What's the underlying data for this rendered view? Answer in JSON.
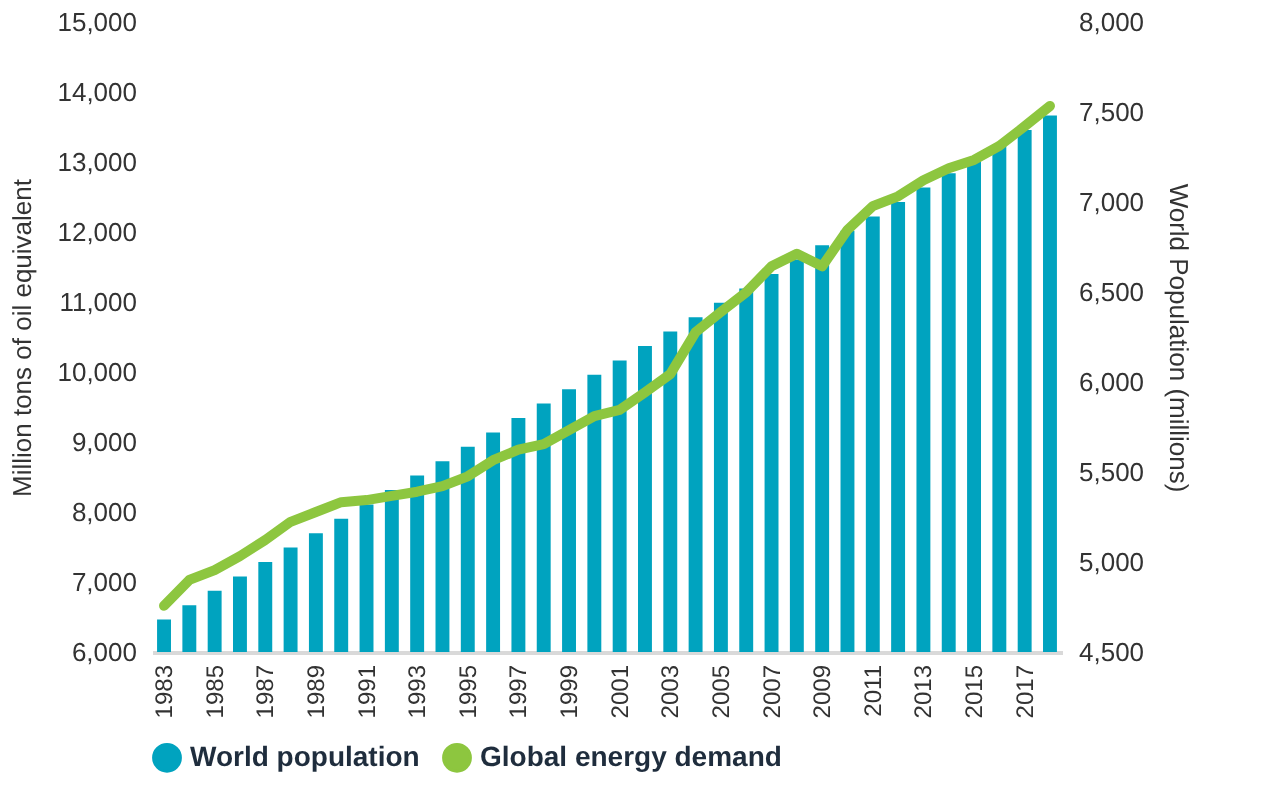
{
  "chart_data": {
    "type": "bar",
    "ylabel": "Million tons of oil equivalent",
    "y2label": "World Population (millions)",
    "categories": [
      "1983",
      null,
      "1985",
      null,
      "1987",
      null,
      "1989",
      null,
      "1991",
      null,
      "1993",
      null,
      "1995",
      null,
      "1997",
      null,
      "1999",
      null,
      "2001",
      null,
      "2003",
      null,
      "2005",
      null,
      "2007",
      null,
      "2009",
      null,
      "2011",
      null,
      "2013",
      null,
      "2015",
      null,
      "2017",
      null
    ],
    "series": [
      {
        "name": "World population",
        "axis": "y2",
        "color": "#00a3bf",
        "values": [
          4680,
          4760,
          4840,
          4920,
          5000,
          5080,
          5160,
          5240,
          5320,
          5400,
          5480,
          5560,
          5640,
          5720,
          5800,
          5880,
          5960,
          6040,
          6120,
          6200,
          6280,
          6360,
          6440,
          6520,
          6600,
          6680,
          6760,
          6840,
          6920,
          7000,
          7080,
          7160,
          7240,
          7320,
          7400,
          7480
        ]
      },
      {
        "name": "Global energy demand",
        "type": "line",
        "color": "#8dc63f",
        "values": [
          6660,
          7030,
          7170,
          7370,
          7600,
          7860,
          8000,
          8140,
          8170,
          8230,
          8290,
          8370,
          8510,
          8740,
          8890,
          8970,
          9170,
          9370,
          9460,
          9710,
          9970,
          10570,
          10860,
          11140,
          11510,
          11690,
          11510,
          12030,
          12370,
          12510,
          12740,
          12910,
          13030,
          13230,
          13510,
          13800
        ]
      }
    ],
    "ylim": [
      6000,
      15000
    ],
    "yticks": [
      {
        "value": 6000,
        "label": "6,000"
      },
      {
        "value": 7000,
        "label": "7,000"
      },
      {
        "value": 8000,
        "label": "8,000"
      },
      {
        "value": 9000,
        "label": "9,000"
      },
      {
        "value": 10000,
        "label": "10,000"
      },
      {
        "value": 11000,
        "label": "11,000"
      },
      {
        "value": 12000,
        "label": "12,000"
      },
      {
        "value": 13000,
        "label": "13,000"
      },
      {
        "value": 14000,
        "label": "14,000"
      },
      {
        "value": 15000,
        "label": "15,000"
      }
    ],
    "y2lim": [
      4500,
      8000
    ],
    "y2ticks": [
      {
        "value": 4500,
        "label": "4,500"
      },
      {
        "value": 5000,
        "label": "5,000"
      },
      {
        "value": 5500,
        "label": "5,500"
      },
      {
        "value": 6000,
        "label": "6,000"
      },
      {
        "value": 6500,
        "label": "6,500"
      },
      {
        "value": 7000,
        "label": "7,000"
      },
      {
        "value": 7500,
        "label": "7,500"
      },
      {
        "value": 8000,
        "label": "8,000"
      }
    ],
    "grid": false,
    "legend": "bottom"
  }
}
